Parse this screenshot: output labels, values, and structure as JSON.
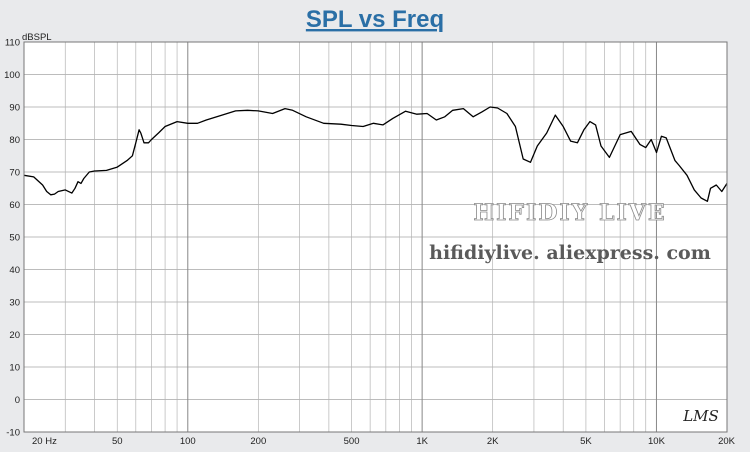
{
  "chart_data": {
    "type": "line",
    "title": "SPL vs Freq",
    "ylabel": "dBSPL",
    "xlabel": "",
    "x_scale": "log",
    "xlim": [
      20,
      20000
    ],
    "ylim": [
      -10,
      110
    ],
    "grid": true,
    "yticks": [
      -10,
      0,
      10,
      20,
      30,
      40,
      50,
      60,
      70,
      80,
      90,
      100,
      110
    ],
    "ytick_labels": [
      "-10",
      "0",
      "10",
      "20",
      "30",
      "40",
      "50",
      "60",
      "70",
      "80",
      "90",
      "100",
      "110"
    ],
    "xticks": [
      20,
      50,
      100,
      200,
      500,
      1000,
      2000,
      5000,
      10000,
      20000
    ],
    "xtick_labels": [
      "20  Hz",
      "50",
      "100",
      "200",
      "500",
      "1K",
      "2K",
      "5K",
      "10K",
      "20K"
    ],
    "line_color": "#000000",
    "series": [
      {
        "x": [
          20,
          22,
          24,
          25,
          26,
          27,
          28,
          30,
          32,
          33,
          34,
          35,
          36,
          38,
          40,
          45,
          50,
          55,
          58,
          60,
          62,
          63,
          65,
          68,
          70,
          75,
          80,
          90,
          100,
          110,
          120,
          140,
          160,
          180,
          200,
          230,
          260,
          280,
          320,
          380,
          450,
          500,
          560,
          620,
          680,
          750,
          850,
          950,
          1050,
          1150,
          1250,
          1350,
          1500,
          1650,
          1800,
          1950,
          2100,
          2300,
          2500,
          2700,
          2900,
          3100,
          3400,
          3700,
          4000,
          4300,
          4600,
          4900,
          5200,
          5500,
          5800,
          6300,
          7000,
          7800,
          8500,
          9000,
          9500,
          10000,
          10500,
          11000,
          12000,
          12500,
          13500,
          14500,
          15500,
          16500,
          17000,
          18000,
          19000,
          20000
        ],
        "y": [
          69,
          68.5,
          66,
          64,
          63,
          63.2,
          64,
          64.5,
          63.5,
          65,
          67,
          66.5,
          68,
          70,
          70.3,
          70.5,
          71.5,
          73.5,
          75,
          79,
          83,
          82,
          79,
          79,
          80,
          82,
          84,
          85.5,
          85,
          85,
          86,
          87.5,
          88.8,
          89,
          88.8,
          88,
          89.5,
          89,
          87,
          85,
          84.7,
          84.3,
          84,
          85,
          84.5,
          86.5,
          88.7,
          87.8,
          88,
          86,
          87,
          89,
          89.5,
          87,
          88.5,
          90,
          89.7,
          88,
          84,
          74,
          73,
          78,
          82,
          87.5,
          84,
          79.5,
          79,
          83,
          85.5,
          84.5,
          78,
          74.5,
          81.5,
          82.5,
          78.5,
          77.5,
          80,
          76,
          81,
          80.5,
          73.5,
          72,
          69,
          64.5,
          62,
          61,
          65,
          66,
          64,
          66.5
        ]
      }
    ]
  },
  "watermark": {
    "brand": "HIFIDIY LIVE",
    "url": "hifidiylive. aliexpress. com"
  },
  "logo": "LMS"
}
